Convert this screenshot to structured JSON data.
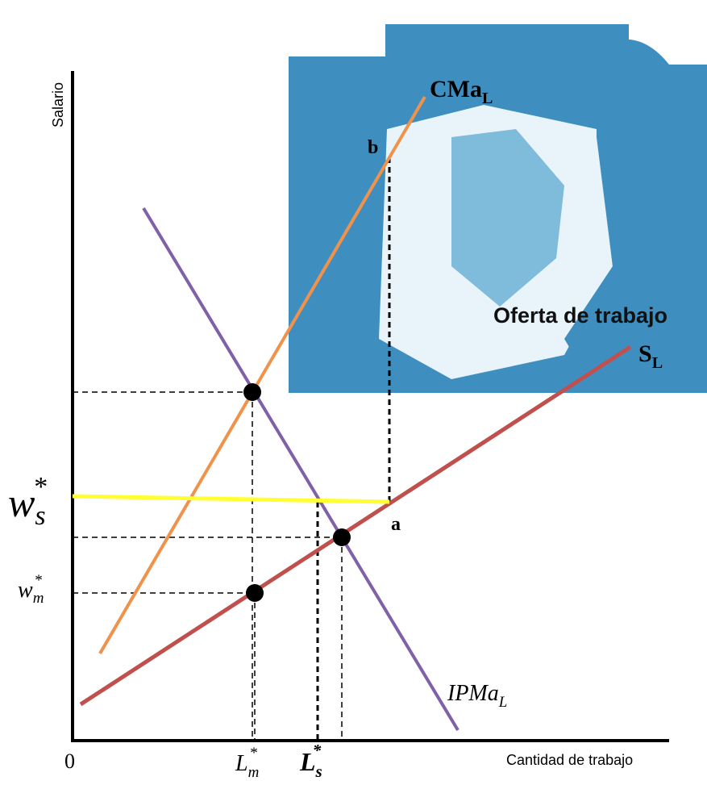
{
  "axes": {
    "y_label": "Salario",
    "x_label": "Cantidad de trabajo",
    "origin": "0"
  },
  "curves": {
    "marginal_cost": {
      "base": "CMa",
      "subscript": "L"
    },
    "supply_title": "Oferta de trabajo",
    "supply": {
      "base": "S",
      "subscript": "L"
    },
    "marginal_revenue_product": {
      "base": "IPMa",
      "subscript": "L"
    }
  },
  "points": {
    "a": "a",
    "b": "b"
  },
  "wages": {
    "minimum": {
      "base": "w",
      "subscript": "s",
      "superscript": "*"
    },
    "monopsony": {
      "base": "w",
      "subscript": "m",
      "superscript": "*"
    }
  },
  "quantities": {
    "monopsony": {
      "base": "L",
      "subscript": "m",
      "superscript": "*"
    },
    "minimum": {
      "base": "L",
      "subscript": "s",
      "superscript": "*"
    }
  }
}
